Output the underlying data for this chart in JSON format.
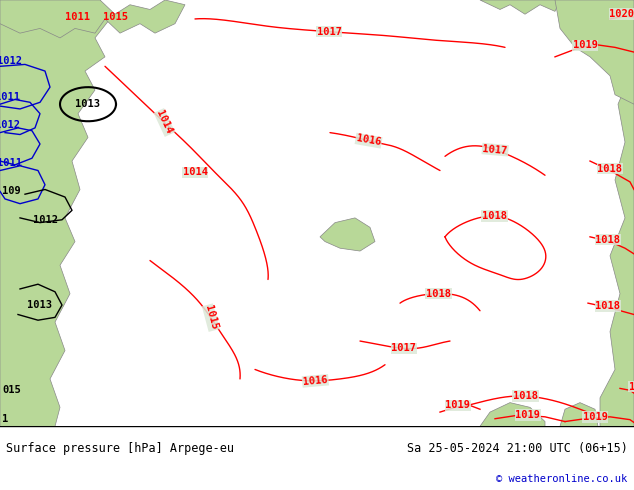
{
  "title_left": "Surface pressure [hPa] Arpege-eu",
  "title_right": "Sa 25-05-2024 21:00 UTC (06+15)",
  "copyright": "© weatheronline.co.uk",
  "sea_color": "#dce8d8",
  "land_color": "#b8d898",
  "isobar_red": "#ff0000",
  "isobar_blue": "#0000cc",
  "isobar_black": "#000000",
  "coast_color": "#888888",
  "bottom_bar_color": "#ffffff",
  "fig_width": 6.34,
  "fig_height": 4.9,
  "dpi": 100
}
